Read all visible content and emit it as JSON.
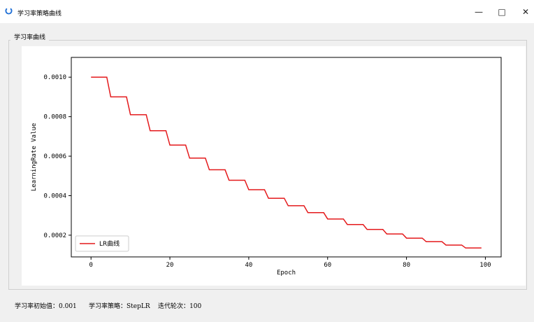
{
  "window": {
    "title": "学习率策略曲线",
    "minimize": "—",
    "maximize": "□",
    "close": "✕",
    "accent": "#1f6fd6"
  },
  "group": {
    "title": "学习率曲线"
  },
  "status": {
    "initial_label": "学习率初始值：",
    "initial_value": "0.001",
    "policy_label": "学习率策略：",
    "policy_value": "StepLR",
    "epochs_label": "迭代轮次：",
    "epochs_value": "100"
  },
  "chart_data": {
    "type": "line",
    "xlabel": "Epoch",
    "ylabel": "LearningRate Value",
    "xlim": [
      -5,
      104
    ],
    "ylim": [
      9e-05,
      0.0011
    ],
    "xticks": [
      0,
      20,
      40,
      60,
      80,
      100
    ],
    "yticks": [
      0.0002,
      0.0004,
      0.0006,
      0.0008,
      0.001
    ],
    "ytick_labels": [
      "0.0002",
      "0.0004",
      "0.0006",
      "0.0008",
      "0.0010"
    ],
    "step_size": 5,
    "series": [
      {
        "name": "LR曲线",
        "color": "#e41a1c",
        "x_start": 0,
        "x_end": 99,
        "values": [
          0.001,
          0.0009,
          0.00081,
          0.000729,
          0.000656,
          0.00059,
          0.000531,
          0.000478,
          0.00043,
          0.000387,
          0.000349,
          0.000314,
          0.000282,
          0.000254,
          0.000229,
          0.000206,
          0.000185,
          0.000167,
          0.00015,
          0.000135
        ]
      }
    ],
    "legend": "lower-left",
    "grid": false
  }
}
